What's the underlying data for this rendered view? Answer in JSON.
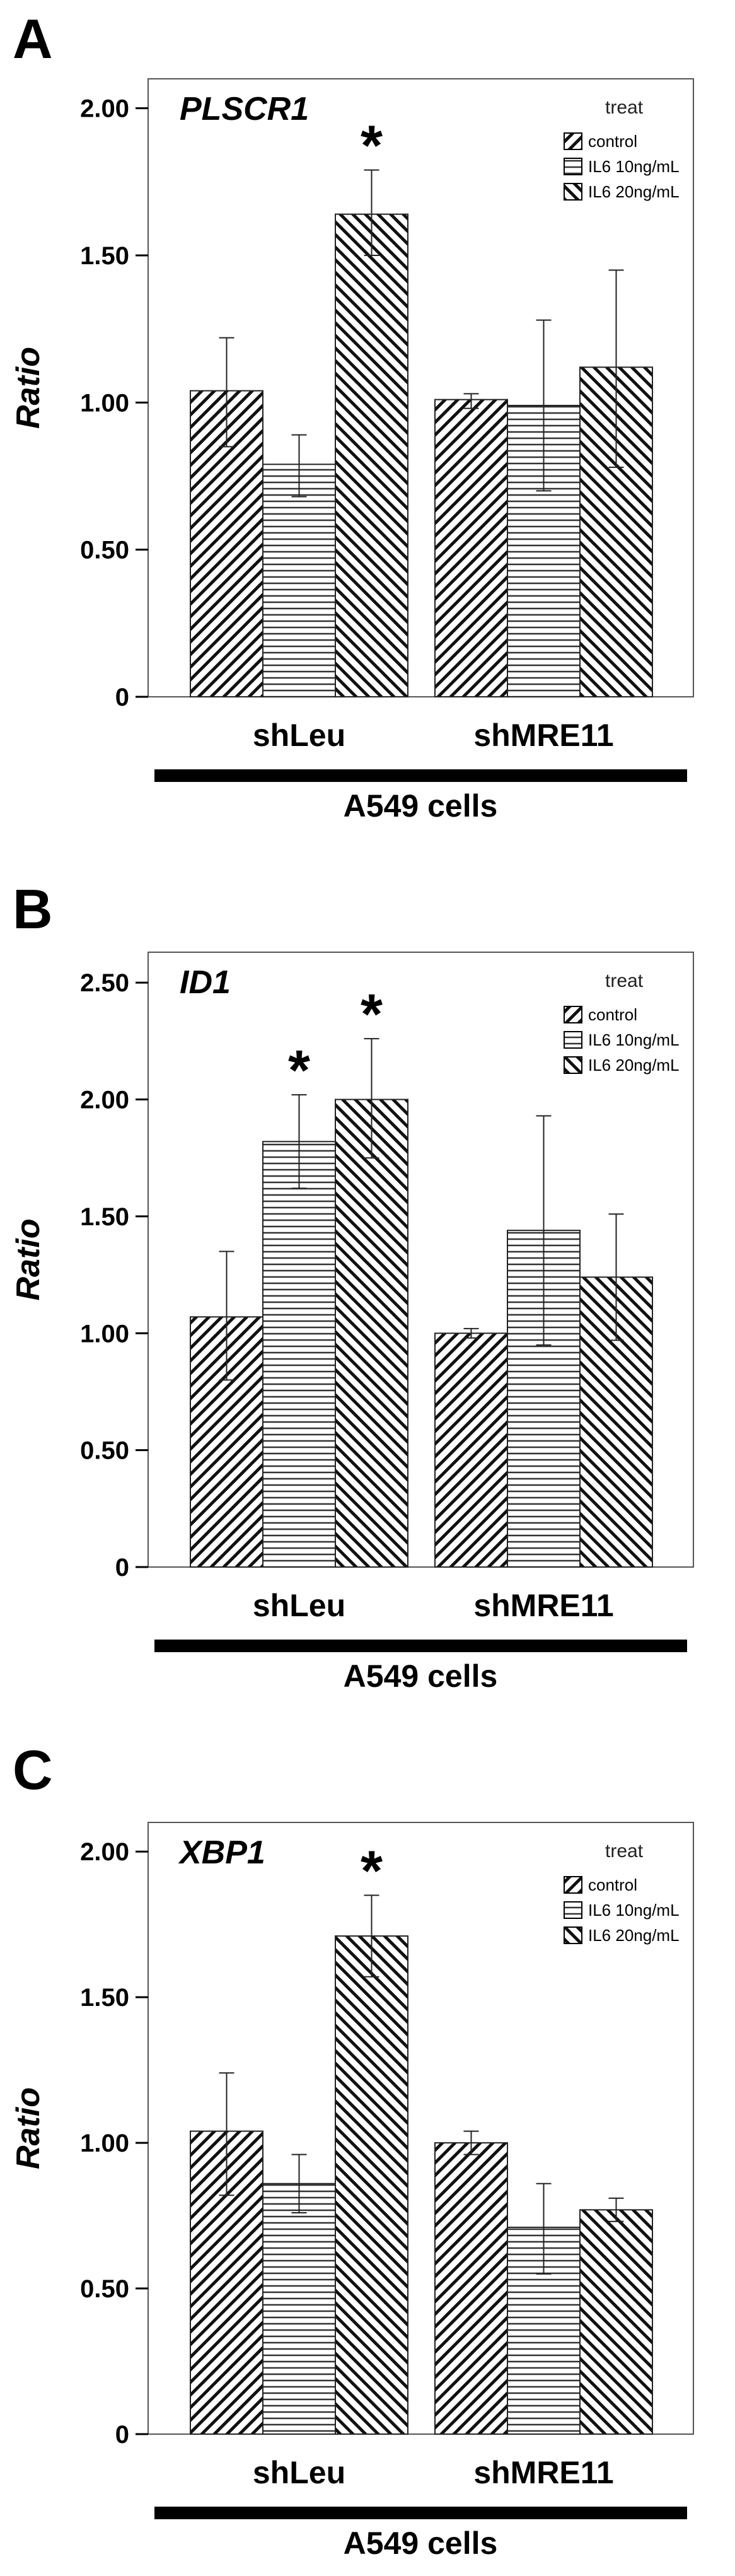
{
  "chart_data": [
    {
      "panel_label": "A",
      "type": "bar",
      "gene": "PLSCR1",
      "ylabel": "Ratio",
      "ylim": [
        0,
        2.1
      ],
      "yticks": [
        "0",
        "0.50",
        "1.00",
        "1.50",
        "2.00"
      ],
      "ytick_values": [
        0,
        0.5,
        1.0,
        1.5,
        2.0
      ],
      "legend_title": "treat",
      "legend_position": "top-right",
      "categories": [
        "shLeu",
        "shMRE11"
      ],
      "xgroup_label": "A549 cells",
      "series": [
        {
          "name": "control",
          "pattern": "diag-right",
          "values": [
            1.04,
            1.01
          ],
          "err_low": [
            0.85,
            0.98
          ],
          "err_high": [
            1.22,
            1.03
          ]
        },
        {
          "name": "IL6 10ng/mL",
          "pattern": "horizontal",
          "values": [
            0.79,
            0.99
          ],
          "err_low": [
            0.68,
            0.7
          ],
          "err_high": [
            0.89,
            1.28
          ]
        },
        {
          "name": "IL6 20ng/mL",
          "pattern": "diag-left",
          "values": [
            1.64,
            1.12
          ],
          "err_low": [
            1.5,
            0.78
          ],
          "err_high": [
            1.79,
            1.45
          ]
        }
      ],
      "significance": [
        {
          "category": "shLeu",
          "series": "IL6 20ng/mL",
          "mark": "*"
        }
      ]
    },
    {
      "panel_label": "B",
      "type": "bar",
      "gene": "ID1",
      "ylabel": "Ratio",
      "ylim": [
        0,
        2.63
      ],
      "yticks": [
        "0",
        "0.50",
        "1.00",
        "1.50",
        "2.00",
        "2.50"
      ],
      "ytick_values": [
        0,
        0.5,
        1.0,
        1.5,
        2.0,
        2.5
      ],
      "legend_title": "treat",
      "legend_position": "top-right",
      "categories": [
        "shLeu",
        "shMRE11"
      ],
      "xgroup_label": "A549 cells",
      "series": [
        {
          "name": "control",
          "pattern": "diag-right",
          "values": [
            1.07,
            1.0
          ],
          "err_low": [
            0.8,
            0.98
          ],
          "err_high": [
            1.35,
            1.02
          ]
        },
        {
          "name": "IL6 10ng/mL",
          "pattern": "horizontal",
          "values": [
            1.82,
            1.44
          ],
          "err_low": [
            1.62,
            0.95
          ],
          "err_high": [
            2.02,
            1.93
          ]
        },
        {
          "name": "IL6 20ng/mL",
          "pattern": "diag-left",
          "values": [
            2.0,
            1.24
          ],
          "err_low": [
            1.75,
            0.97
          ],
          "err_high": [
            2.26,
            1.51
          ]
        }
      ],
      "significance": [
        {
          "category": "shLeu",
          "series": "IL6 10ng/mL",
          "mark": "*"
        },
        {
          "category": "shLeu",
          "series": "IL6 20ng/mL",
          "mark": "*"
        }
      ]
    },
    {
      "panel_label": "C",
      "type": "bar",
      "gene": "XBP1",
      "ylabel": "Ratio",
      "ylim": [
        0,
        2.1
      ],
      "yticks": [
        "0",
        "0.50",
        "1.00",
        "1.50",
        "2.00"
      ],
      "ytick_values": [
        0,
        0.5,
        1.0,
        1.5,
        2.0
      ],
      "legend_title": "treat",
      "legend_position": "top-right",
      "categories": [
        "shLeu",
        "shMRE11"
      ],
      "xgroup_label": "A549 cells",
      "series": [
        {
          "name": "control",
          "pattern": "diag-right",
          "values": [
            1.04,
            1.0
          ],
          "err_low": [
            0.82,
            0.96
          ],
          "err_high": [
            1.24,
            1.04
          ]
        },
        {
          "name": "IL6 10ng/mL",
          "pattern": "horizontal",
          "values": [
            0.86,
            0.71
          ],
          "err_low": [
            0.76,
            0.55
          ],
          "err_high": [
            0.96,
            0.86
          ]
        },
        {
          "name": "IL6 20ng/mL",
          "pattern": "diag-left",
          "values": [
            1.71,
            0.77
          ],
          "err_low": [
            1.57,
            0.73
          ],
          "err_high": [
            1.85,
            0.81
          ]
        }
      ],
      "significance": [
        {
          "category": "shLeu",
          "series": "IL6 20ng/mL",
          "mark": "*"
        }
      ]
    }
  ]
}
